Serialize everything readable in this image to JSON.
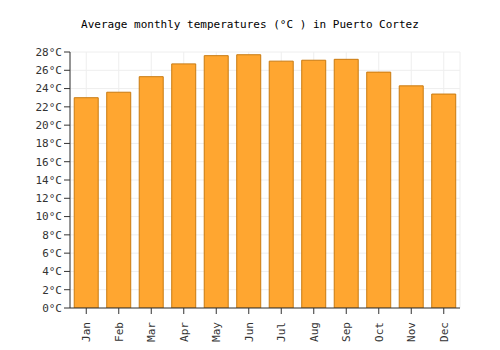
{
  "chart_data": {
    "type": "bar",
    "title": "Average monthly temperatures (°C ) in Puerto Cortez",
    "categories": [
      "Jan",
      "Feb",
      "Mar",
      "Apr",
      "May",
      "Jun",
      "Jul",
      "Aug",
      "Sep",
      "Oct",
      "Nov",
      "Dec"
    ],
    "values": [
      23.0,
      23.6,
      25.3,
      26.7,
      27.6,
      27.7,
      27.0,
      27.1,
      27.2,
      25.8,
      24.3,
      23.4
    ],
    "color": "#ffa630",
    "ylim": [
      0,
      28
    ],
    "yticks": [
      {
        "value": 0,
        "label": "0°C"
      },
      {
        "value": 2,
        "label": "2°C"
      },
      {
        "value": 4,
        "label": "4°C"
      },
      {
        "value": 6,
        "label": "6°C"
      },
      {
        "value": 8,
        "label": "8°C"
      },
      {
        "value": 10,
        "label": "10°C"
      },
      {
        "value": 12,
        "label": "12°C"
      },
      {
        "value": 14,
        "label": "14°C"
      },
      {
        "value": 16,
        "label": "16°C"
      },
      {
        "value": 18,
        "label": "18°C"
      },
      {
        "value": 20,
        "label": "20°C"
      },
      {
        "value": 22,
        "label": "22°C"
      },
      {
        "value": 24,
        "label": "24°C"
      },
      {
        "value": 26,
        "label": "26°C"
      },
      {
        "value": 28,
        "label": "28°C"
      }
    ],
    "grid": true
  }
}
